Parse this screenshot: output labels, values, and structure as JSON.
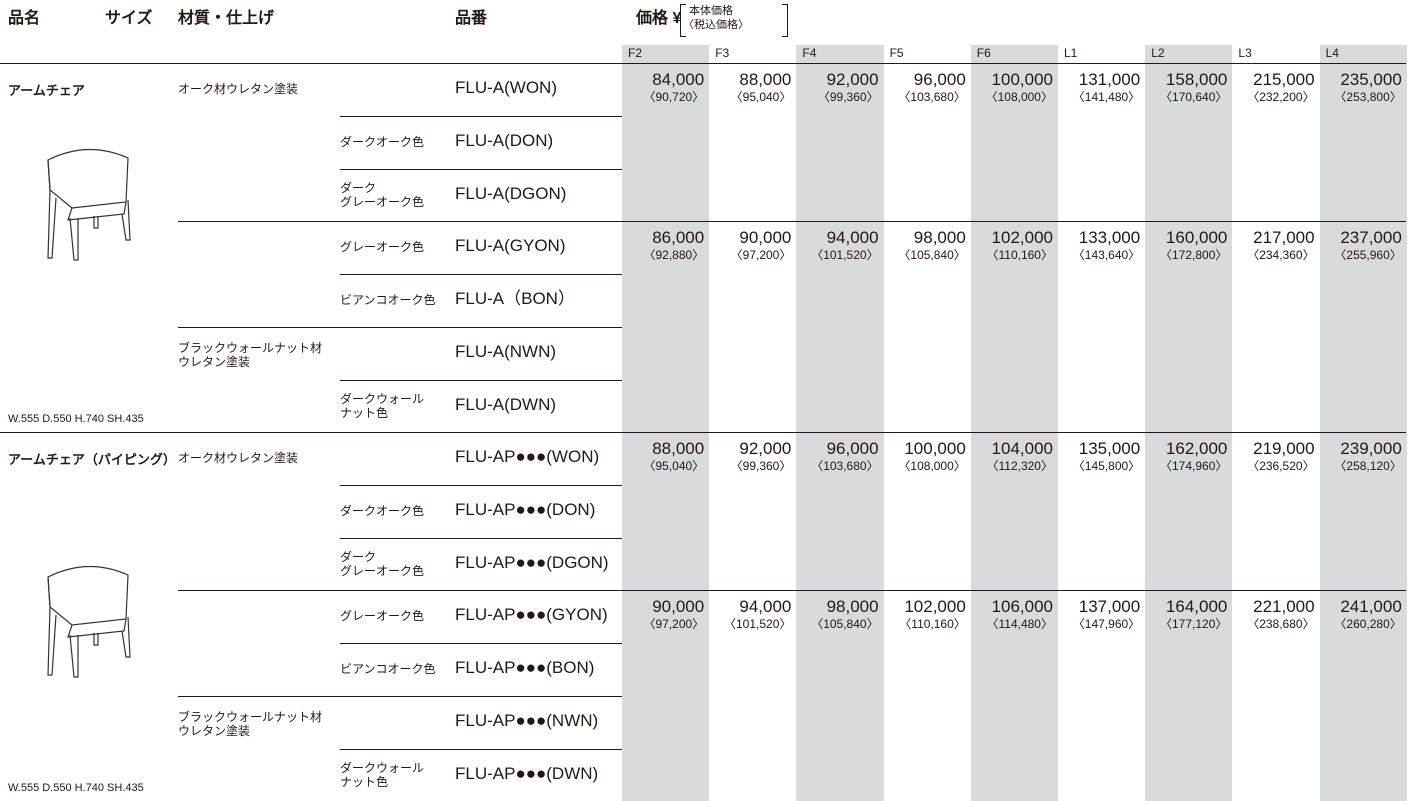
{
  "header": {
    "name": "品名",
    "size": "サイズ",
    "material": "材質・仕上げ",
    "part_no": "品番",
    "price": "価格 ¥",
    "price_note": [
      "本体価格",
      "〈税込価格〉"
    ]
  },
  "grades": [
    "F2",
    "F3",
    "F4",
    "F5",
    "F6",
    "L1",
    "L2",
    "L3",
    "L4"
  ],
  "products": [
    {
      "name": "アームチェア",
      "size": "W.555 D.550 H.740 SH.435",
      "rows": [
        {
          "material": "オーク材ウレタン塗装",
          "code": "FLU-A(WON)"
        },
        {
          "color": "ダークオーク色",
          "code": "FLU-A(DON)"
        },
        {
          "color": "ダーク\nグレーオーク色",
          "code": "FLU-A(DGON)"
        },
        {
          "color": "グレーオーク色",
          "code": "FLU-A(GYON)"
        },
        {
          "color": "ビアンコオーク色",
          "code": "FLU-A（BON）"
        },
        {
          "material": "ブラックウォールナット材\nウレタン塗装",
          "code": "FLU-A(NWN)"
        },
        {
          "color": "ダークウォール\nナット色",
          "code": "FLU-A(DWN)"
        }
      ],
      "prices": [
        {
          "row": 0,
          "base": [
            "84,000",
            "88,000",
            "92,000",
            "96,000",
            "100,000",
            "131,000",
            "158,000",
            "215,000",
            "235,000"
          ],
          "tax": [
            "〈90,720〉",
            "〈95,040〉",
            "〈99,360〉",
            "〈103,680〉",
            "〈108,000〉",
            "〈141,480〉",
            "〈170,640〉",
            "〈232,200〉",
            "〈253,800〉"
          ]
        },
        {
          "row": 3,
          "base": [
            "86,000",
            "90,000",
            "94,000",
            "98,000",
            "102,000",
            "133,000",
            "160,000",
            "217,000",
            "237,000"
          ],
          "tax": [
            "〈92,880〉",
            "〈97,200〉",
            "〈101,520〉",
            "〈105,840〉",
            "〈110,160〉",
            "〈143,640〉",
            "〈172,800〉",
            "〈234,360〉",
            "〈255,960〉"
          ]
        }
      ]
    },
    {
      "name": "アームチェア（パイピング）",
      "size": "W.555 D.550 H.740 SH.435",
      "rows": [
        {
          "material": "オーク材ウレタン塗装",
          "code": "FLU-AP●●●(WON)"
        },
        {
          "color": "ダークオーク色",
          "code": "FLU-AP●●●(DON)"
        },
        {
          "color": "ダーク\nグレーオーク色",
          "code": "FLU-AP●●●(DGON)"
        },
        {
          "color": "グレーオーク色",
          "code": "FLU-AP●●●(GYON)"
        },
        {
          "color": "ビアンコオーク色",
          "code": "FLU-AP●●●(BON)"
        },
        {
          "material": "ブラックウォールナット材\nウレタン塗装",
          "code": "FLU-AP●●●(NWN)"
        },
        {
          "color": "ダークウォール\nナット色",
          "code": "FLU-AP●●●(DWN)"
        }
      ],
      "prices": [
        {
          "row": 0,
          "base": [
            "88,000",
            "92,000",
            "96,000",
            "100,000",
            "104,000",
            "135,000",
            "162,000",
            "219,000",
            "239,000"
          ],
          "tax": [
            "〈95,040〉",
            "〈99,360〉",
            "〈103,680〉",
            "〈108,000〉",
            "〈112,320〉",
            "〈145,800〉",
            "〈174,960〉",
            "〈236,520〉",
            "〈258,120〉"
          ]
        },
        {
          "row": 3,
          "base": [
            "90,000",
            "94,000",
            "98,000",
            "102,000",
            "106,000",
            "137,000",
            "164,000",
            "221,000",
            "241,000"
          ],
          "tax": [
            "〈97,200〉",
            "〈101,520〉",
            "〈105,840〉",
            "〈110,160〉",
            "〈114,480〉",
            "〈147,960〉",
            "〈177,120〉",
            "〈238,680〉",
            "〈260,280〉"
          ]
        }
      ]
    }
  ]
}
